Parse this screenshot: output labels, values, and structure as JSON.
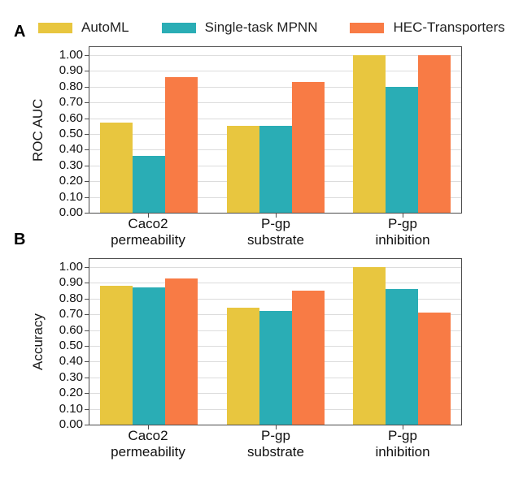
{
  "colors": {
    "automl": "#E8C63F",
    "mpnn": "#2AADB5",
    "hec": "#F87B45",
    "grid": "#dcdcdc",
    "frame": "#4d4d4d",
    "text": "#1a1a1a"
  },
  "legend": {
    "items": [
      {
        "label": "AutoML",
        "color_key": "automl"
      },
      {
        "label": "Single-task MPNN",
        "color_key": "mpnn"
      },
      {
        "label": "HEC-Transporters",
        "color_key": "hec"
      }
    ]
  },
  "panels": [
    {
      "letter": "A",
      "ylabel": "ROC AUC"
    },
    {
      "letter": "B",
      "ylabel": "Accuracy"
    }
  ],
  "chart_data": [
    {
      "type": "bar",
      "panel": "A",
      "title": "",
      "xlabel": "",
      "ylabel": "ROC AUC",
      "categories": [
        "Caco2\npermeability",
        "P-gp\nsubstrate",
        "P-gp\ninhibition"
      ],
      "series": [
        {
          "name": "AutoML",
          "color_key": "automl",
          "values": [
            0.57,
            0.55,
            1.0
          ]
        },
        {
          "name": "Single-task MPNN",
          "color_key": "mpnn",
          "values": [
            0.36,
            0.55,
            0.8
          ]
        },
        {
          "name": "HEC-Transporters",
          "color_key": "hec",
          "values": [
            0.86,
            0.83,
            1.0
          ]
        }
      ],
      "ylim": [
        0.0,
        1.0
      ],
      "ytick_step": 0.1,
      "ytick_format_decimals": 2,
      "grid": true,
      "legend_position": "top"
    },
    {
      "type": "bar",
      "panel": "B",
      "title": "",
      "xlabel": "",
      "ylabel": "Accuracy",
      "categories": [
        "Caco2\npermeability",
        "P-gp\nsubstrate",
        "P-gp\ninhibition"
      ],
      "series": [
        {
          "name": "AutoML",
          "color_key": "automl",
          "values": [
            0.88,
            0.74,
            1.0
          ]
        },
        {
          "name": "Single-task MPNN",
          "color_key": "mpnn",
          "values": [
            0.87,
            0.72,
            0.86
          ]
        },
        {
          "name": "HEC-Transporters",
          "color_key": "hec",
          "values": [
            0.93,
            0.85,
            0.71
          ]
        }
      ],
      "ylim": [
        0.0,
        1.0
      ],
      "ytick_step": 0.1,
      "ytick_format_decimals": 2,
      "grid": true,
      "legend_position": "top"
    }
  ]
}
